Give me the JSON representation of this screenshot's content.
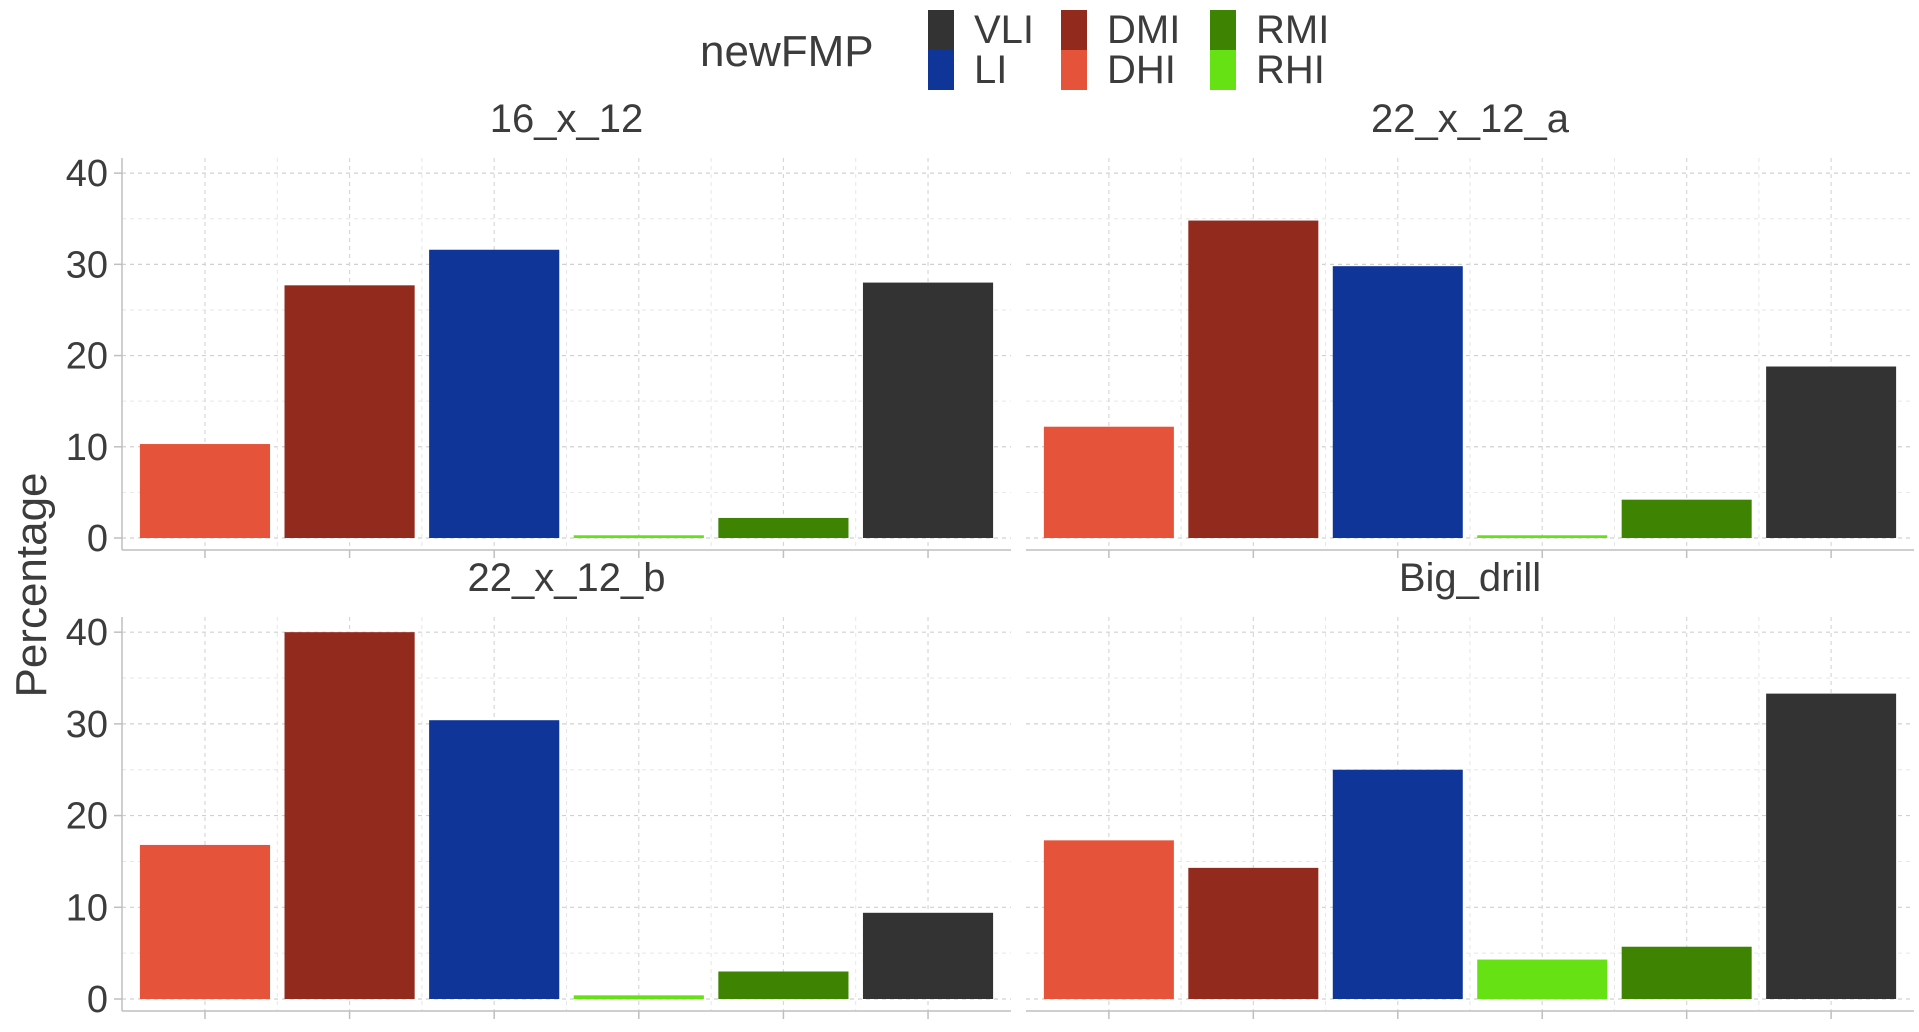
{
  "chart_data": {
    "type": "bar",
    "facet_layout": "2x2",
    "legend": {
      "title": "newFMP",
      "placement": "top",
      "entries": [
        {
          "label": "VLI",
          "color": "#333333"
        },
        {
          "label": "LI",
          "color": "#103598"
        },
        {
          "label": "DMI",
          "color": "#922A1D"
        },
        {
          "label": "DHI",
          "color": "#E5533A"
        },
        {
          "label": "RMI",
          "color": "#3E8302"
        },
        {
          "label": "RHI",
          "color": "#66E114"
        }
      ]
    },
    "ylabel": "Percentage",
    "xlabel": "",
    "ylim": [
      0,
      41
    ],
    "yticks": [
      0,
      10,
      20,
      30,
      40
    ],
    "grid": true,
    "categories": [
      "DHI",
      "DMI",
      "LI",
      "RHI",
      "RMI",
      "VLI"
    ],
    "colors": [
      "#E5533A",
      "#922A1D",
      "#103598",
      "#66E114",
      "#3E8302",
      "#333333"
    ],
    "panels": [
      {
        "title": "16_x_12",
        "values": [
          10.3,
          27.7,
          31.6,
          0.3,
          2.2,
          28.0
        ]
      },
      {
        "title": "22_x_12_a",
        "values": [
          12.2,
          34.8,
          29.8,
          0.3,
          4.2,
          18.8
        ]
      },
      {
        "title": "22_x_12_b",
        "values": [
          16.8,
          40.0,
          30.4,
          0.4,
          3.0,
          9.4
        ]
      },
      {
        "title": "Big_drill",
        "values": [
          17.3,
          14.3,
          25.0,
          4.3,
          5.7,
          33.3
        ]
      }
    ]
  }
}
